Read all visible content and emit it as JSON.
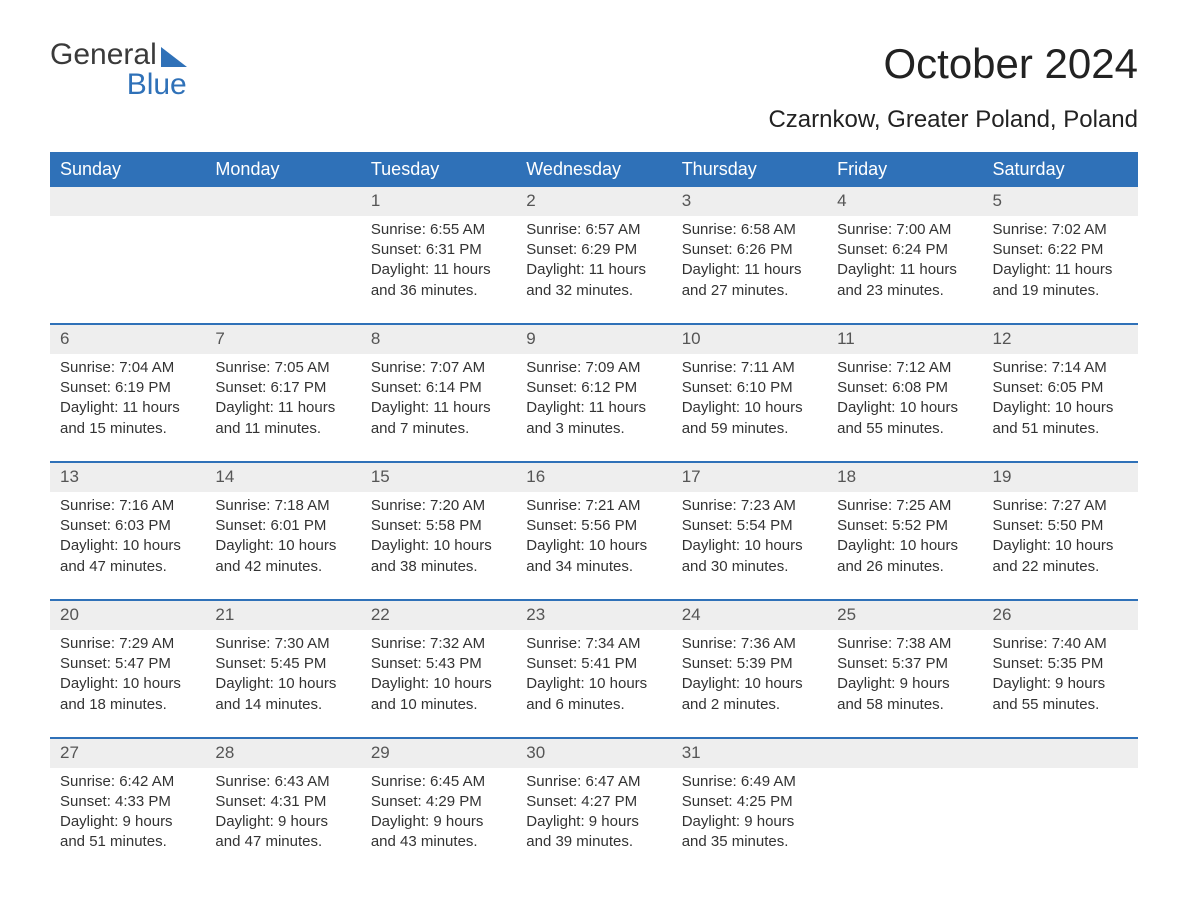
{
  "brand": {
    "line1": "General",
    "line2": "Blue"
  },
  "title": "October 2024",
  "subtitle": "Czarnkow, Greater Poland, Poland",
  "colors": {
    "header_bg": "#2f71b8",
    "header_text": "#ffffff",
    "daynum_bg": "#eeeeee",
    "text": "#333333",
    "page_bg": "#ffffff"
  },
  "fonts": {
    "title_pt": 42,
    "subtitle_pt": 24,
    "header_pt": 18,
    "daynum_pt": 17,
    "body_pt": 15
  },
  "days_of_week": [
    "Sunday",
    "Monday",
    "Tuesday",
    "Wednesday",
    "Thursday",
    "Friday",
    "Saturday"
  ],
  "weeks": [
    [
      null,
      null,
      {
        "n": "1",
        "sr": "Sunrise: 6:55 AM",
        "ss": "Sunset: 6:31 PM",
        "d1": "Daylight: 11 hours",
        "d2": "and 36 minutes."
      },
      {
        "n": "2",
        "sr": "Sunrise: 6:57 AM",
        "ss": "Sunset: 6:29 PM",
        "d1": "Daylight: 11 hours",
        "d2": "and 32 minutes."
      },
      {
        "n": "3",
        "sr": "Sunrise: 6:58 AM",
        "ss": "Sunset: 6:26 PM",
        "d1": "Daylight: 11 hours",
        "d2": "and 27 minutes."
      },
      {
        "n": "4",
        "sr": "Sunrise: 7:00 AM",
        "ss": "Sunset: 6:24 PM",
        "d1": "Daylight: 11 hours",
        "d2": "and 23 minutes."
      },
      {
        "n": "5",
        "sr": "Sunrise: 7:02 AM",
        "ss": "Sunset: 6:22 PM",
        "d1": "Daylight: 11 hours",
        "d2": "and 19 minutes."
      }
    ],
    [
      {
        "n": "6",
        "sr": "Sunrise: 7:04 AM",
        "ss": "Sunset: 6:19 PM",
        "d1": "Daylight: 11 hours",
        "d2": "and 15 minutes."
      },
      {
        "n": "7",
        "sr": "Sunrise: 7:05 AM",
        "ss": "Sunset: 6:17 PM",
        "d1": "Daylight: 11 hours",
        "d2": "and 11 minutes."
      },
      {
        "n": "8",
        "sr": "Sunrise: 7:07 AM",
        "ss": "Sunset: 6:14 PM",
        "d1": "Daylight: 11 hours",
        "d2": "and 7 minutes."
      },
      {
        "n": "9",
        "sr": "Sunrise: 7:09 AM",
        "ss": "Sunset: 6:12 PM",
        "d1": "Daylight: 11 hours",
        "d2": "and 3 minutes."
      },
      {
        "n": "10",
        "sr": "Sunrise: 7:11 AM",
        "ss": "Sunset: 6:10 PM",
        "d1": "Daylight: 10 hours",
        "d2": "and 59 minutes."
      },
      {
        "n": "11",
        "sr": "Sunrise: 7:12 AM",
        "ss": "Sunset: 6:08 PM",
        "d1": "Daylight: 10 hours",
        "d2": "and 55 minutes."
      },
      {
        "n": "12",
        "sr": "Sunrise: 7:14 AM",
        "ss": "Sunset: 6:05 PM",
        "d1": "Daylight: 10 hours",
        "d2": "and 51 minutes."
      }
    ],
    [
      {
        "n": "13",
        "sr": "Sunrise: 7:16 AM",
        "ss": "Sunset: 6:03 PM",
        "d1": "Daylight: 10 hours",
        "d2": "and 47 minutes."
      },
      {
        "n": "14",
        "sr": "Sunrise: 7:18 AM",
        "ss": "Sunset: 6:01 PM",
        "d1": "Daylight: 10 hours",
        "d2": "and 42 minutes."
      },
      {
        "n": "15",
        "sr": "Sunrise: 7:20 AM",
        "ss": "Sunset: 5:58 PM",
        "d1": "Daylight: 10 hours",
        "d2": "and 38 minutes."
      },
      {
        "n": "16",
        "sr": "Sunrise: 7:21 AM",
        "ss": "Sunset: 5:56 PM",
        "d1": "Daylight: 10 hours",
        "d2": "and 34 minutes."
      },
      {
        "n": "17",
        "sr": "Sunrise: 7:23 AM",
        "ss": "Sunset: 5:54 PM",
        "d1": "Daylight: 10 hours",
        "d2": "and 30 minutes."
      },
      {
        "n": "18",
        "sr": "Sunrise: 7:25 AM",
        "ss": "Sunset: 5:52 PM",
        "d1": "Daylight: 10 hours",
        "d2": "and 26 minutes."
      },
      {
        "n": "19",
        "sr": "Sunrise: 7:27 AM",
        "ss": "Sunset: 5:50 PM",
        "d1": "Daylight: 10 hours",
        "d2": "and 22 minutes."
      }
    ],
    [
      {
        "n": "20",
        "sr": "Sunrise: 7:29 AM",
        "ss": "Sunset: 5:47 PM",
        "d1": "Daylight: 10 hours",
        "d2": "and 18 minutes."
      },
      {
        "n": "21",
        "sr": "Sunrise: 7:30 AM",
        "ss": "Sunset: 5:45 PM",
        "d1": "Daylight: 10 hours",
        "d2": "and 14 minutes."
      },
      {
        "n": "22",
        "sr": "Sunrise: 7:32 AM",
        "ss": "Sunset: 5:43 PM",
        "d1": "Daylight: 10 hours",
        "d2": "and 10 minutes."
      },
      {
        "n": "23",
        "sr": "Sunrise: 7:34 AM",
        "ss": "Sunset: 5:41 PM",
        "d1": "Daylight: 10 hours",
        "d2": "and 6 minutes."
      },
      {
        "n": "24",
        "sr": "Sunrise: 7:36 AM",
        "ss": "Sunset: 5:39 PM",
        "d1": "Daylight: 10 hours",
        "d2": "and 2 minutes."
      },
      {
        "n": "25",
        "sr": "Sunrise: 7:38 AM",
        "ss": "Sunset: 5:37 PM",
        "d1": "Daylight: 9 hours",
        "d2": "and 58 minutes."
      },
      {
        "n": "26",
        "sr": "Sunrise: 7:40 AM",
        "ss": "Sunset: 5:35 PM",
        "d1": "Daylight: 9 hours",
        "d2": "and 55 minutes."
      }
    ],
    [
      {
        "n": "27",
        "sr": "Sunrise: 6:42 AM",
        "ss": "Sunset: 4:33 PM",
        "d1": "Daylight: 9 hours",
        "d2": "and 51 minutes."
      },
      {
        "n": "28",
        "sr": "Sunrise: 6:43 AM",
        "ss": "Sunset: 4:31 PM",
        "d1": "Daylight: 9 hours",
        "d2": "and 47 minutes."
      },
      {
        "n": "29",
        "sr": "Sunrise: 6:45 AM",
        "ss": "Sunset: 4:29 PM",
        "d1": "Daylight: 9 hours",
        "d2": "and 43 minutes."
      },
      {
        "n": "30",
        "sr": "Sunrise: 6:47 AM",
        "ss": "Sunset: 4:27 PM",
        "d1": "Daylight: 9 hours",
        "d2": "and 39 minutes."
      },
      {
        "n": "31",
        "sr": "Sunrise: 6:49 AM",
        "ss": "Sunset: 4:25 PM",
        "d1": "Daylight: 9 hours",
        "d2": "and 35 minutes."
      },
      null,
      null
    ]
  ]
}
